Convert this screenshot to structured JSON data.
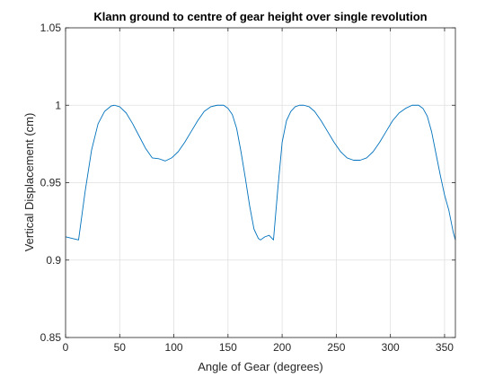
{
  "chart_data": {
    "type": "line",
    "title": "Klann ground to centre of gear height over single revolution",
    "xlabel": "Angle of Gear (degrees)",
    "ylabel": "Vertical Displacement (cm)",
    "xlim": [
      0,
      360
    ],
    "ylim": [
      0.85,
      1.05
    ],
    "xticks": [
      0,
      50,
      100,
      150,
      200,
      250,
      300,
      350
    ],
    "yticks": [
      0.85,
      0.9,
      0.95,
      1,
      1.05
    ],
    "xtick_labels": [
      "0",
      "50",
      "100",
      "150",
      "200",
      "250",
      "300",
      "350"
    ],
    "ytick_labels": [
      "0.85",
      "0.9",
      "0.95",
      "1",
      "1.05"
    ],
    "grid": true,
    "series": [
      {
        "color": "#0072BD",
        "x": [
          0,
          12,
          18,
          24,
          30,
          36,
          42,
          45,
          50,
          56,
          62,
          68,
          74,
          80,
          86,
          92,
          98,
          104,
          110,
          116,
          122,
          128,
          134,
          140,
          146,
          150,
          154,
          158,
          162,
          166,
          170,
          174,
          178,
          180,
          184,
          188,
          192,
          196,
          200,
          204,
          208,
          212,
          216,
          220,
          225,
          230,
          236,
          242,
          248,
          254,
          260,
          266,
          272,
          278,
          284,
          290,
          296,
          302,
          308,
          314,
          320,
          326,
          330,
          334,
          338,
          342,
          346,
          350,
          354,
          358,
          360
        ],
        "y": [
          0.915,
          0.913,
          0.944,
          0.971,
          0.988,
          0.996,
          0.9995,
          1.0,
          0.999,
          0.995,
          0.988,
          0.98,
          0.972,
          0.966,
          0.9655,
          0.964,
          0.966,
          0.97,
          0.976,
          0.983,
          0.99,
          0.996,
          0.999,
          1.0,
          1.0,
          0.998,
          0.994,
          0.985,
          0.97,
          0.953,
          0.935,
          0.92,
          0.914,
          0.913,
          0.915,
          0.916,
          0.913,
          0.946,
          0.976,
          0.99,
          0.996,
          0.999,
          1.0,
          1.0,
          0.999,
          0.996,
          0.99,
          0.983,
          0.976,
          0.97,
          0.966,
          0.9645,
          0.9645,
          0.966,
          0.97,
          0.976,
          0.983,
          0.99,
          0.995,
          0.998,
          1.0,
          1.0,
          0.998,
          0.993,
          0.983,
          0.969,
          0.955,
          0.942,
          0.932,
          0.918,
          0.913
        ]
      }
    ]
  }
}
